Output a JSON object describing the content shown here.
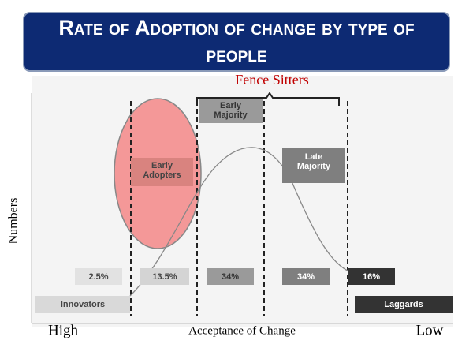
{
  "header": {
    "title": "Rate of Adoption of change by type of people"
  },
  "annotation": "Fence Sitters",
  "groups": [
    {
      "name": "Innovators",
      "percent": "2.5%"
    },
    {
      "name": "Early Adopters",
      "percent": "13.5%"
    },
    {
      "name": "Early Majority",
      "percent": "34%"
    },
    {
      "name": "Late Majority",
      "percent": "34%"
    },
    {
      "name": "Laggards",
      "percent": "16%"
    }
  ],
  "axes": {
    "y_label": "Numbers",
    "x_label": "Acceptance of Change",
    "x_left": "High",
    "x_right": "Low"
  }
}
